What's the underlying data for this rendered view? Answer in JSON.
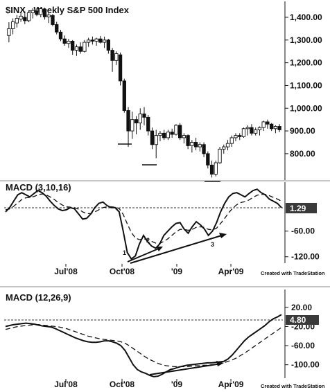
{
  "chart_data": [
    {
      "type": "candlestick",
      "title": "$INX - Weekly  S&P 500 Index",
      "y_ticks": [
        "1,400.00",
        "1,300.00",
        "1,200.00",
        "1,100.00",
        "1,000.00",
        "900.00",
        "800.00"
      ],
      "y_tick_values": [
        1400,
        1300,
        1200,
        1100,
        1000,
        900,
        800
      ],
      "ylim": [
        690,
        1470
      ],
      "candles": [
        {
          "o": 1320,
          "h": 1378,
          "l": 1290,
          "c": 1350
        },
        {
          "o": 1350,
          "h": 1395,
          "l": 1325,
          "c": 1380
        },
        {
          "o": 1375,
          "h": 1410,
          "l": 1355,
          "c": 1395
        },
        {
          "o": 1392,
          "h": 1420,
          "l": 1380,
          "c": 1405
        },
        {
          "o": 1400,
          "h": 1426,
          "l": 1370,
          "c": 1385
        },
        {
          "o": 1385,
          "h": 1430,
          "l": 1378,
          "c": 1420
        },
        {
          "o": 1420,
          "h": 1440,
          "l": 1395,
          "c": 1430
        },
        {
          "o": 1428,
          "h": 1440,
          "l": 1405,
          "c": 1412
        },
        {
          "o": 1412,
          "h": 1445,
          "l": 1400,
          "c": 1438
        },
        {
          "o": 1435,
          "h": 1442,
          "l": 1390,
          "c": 1402
        },
        {
          "o": 1402,
          "h": 1420,
          "l": 1375,
          "c": 1410
        },
        {
          "o": 1408,
          "h": 1415,
          "l": 1360,
          "c": 1368
        },
        {
          "o": 1368,
          "h": 1380,
          "l": 1325,
          "c": 1335
        },
        {
          "o": 1335,
          "h": 1345,
          "l": 1295,
          "c": 1305
        },
        {
          "o": 1305,
          "h": 1320,
          "l": 1275,
          "c": 1285
        },
        {
          "o": 1285,
          "h": 1305,
          "l": 1265,
          "c": 1295
        },
        {
          "o": 1295,
          "h": 1300,
          "l": 1235,
          "c": 1255
        },
        {
          "o": 1255,
          "h": 1280,
          "l": 1230,
          "c": 1270
        },
        {
          "o": 1270,
          "h": 1290,
          "l": 1240,
          "c": 1250
        },
        {
          "o": 1250,
          "h": 1300,
          "l": 1245,
          "c": 1290
        },
        {
          "o": 1290,
          "h": 1310,
          "l": 1270,
          "c": 1300
        },
        {
          "o": 1300,
          "h": 1315,
          "l": 1280,
          "c": 1295
        },
        {
          "o": 1295,
          "h": 1310,
          "l": 1275,
          "c": 1305
        },
        {
          "o": 1305,
          "h": 1318,
          "l": 1285,
          "c": 1290
        },
        {
          "o": 1290,
          "h": 1315,
          "l": 1265,
          "c": 1300
        },
        {
          "o": 1300,
          "h": 1305,
          "l": 1240,
          "c": 1255
        },
        {
          "o": 1255,
          "h": 1265,
          "l": 1160,
          "c": 1210
        },
        {
          "o": 1210,
          "h": 1250,
          "l": 1190,
          "c": 1240
        },
        {
          "o": 1235,
          "h": 1245,
          "l": 1100,
          "c": 1120
        },
        {
          "o": 1120,
          "h": 1130,
          "l": 980,
          "c": 990
        },
        {
          "o": 990,
          "h": 1005,
          "l": 830,
          "c": 900
        },
        {
          "o": 900,
          "h": 985,
          "l": 865,
          "c": 950
        },
        {
          "o": 950,
          "h": 965,
          "l": 885,
          "c": 935
        },
        {
          "o": 935,
          "h": 1000,
          "l": 905,
          "c": 975
        },
        {
          "o": 975,
          "h": 1005,
          "l": 925,
          "c": 960
        },
        {
          "o": 960,
          "h": 970,
          "l": 880,
          "c": 900
        },
        {
          "o": 900,
          "h": 915,
          "l": 820,
          "c": 840
        },
        {
          "o": 840,
          "h": 905,
          "l": 780,
          "c": 880
        },
        {
          "o": 880,
          "h": 900,
          "l": 855,
          "c": 890
        },
        {
          "o": 890,
          "h": 905,
          "l": 860,
          "c": 870
        },
        {
          "o": 870,
          "h": 905,
          "l": 860,
          "c": 895
        },
        {
          "o": 895,
          "h": 910,
          "l": 870,
          "c": 885
        },
        {
          "o": 885,
          "h": 930,
          "l": 880,
          "c": 925
        },
        {
          "o": 925,
          "h": 935,
          "l": 860,
          "c": 870
        },
        {
          "o": 870,
          "h": 890,
          "l": 845,
          "c": 880
        },
        {
          "o": 880,
          "h": 885,
          "l": 820,
          "c": 835
        },
        {
          "o": 835,
          "h": 860,
          "l": 805,
          "c": 850
        },
        {
          "o": 850,
          "h": 870,
          "l": 815,
          "c": 830
        },
        {
          "o": 830,
          "h": 850,
          "l": 810,
          "c": 840
        },
        {
          "o": 840,
          "h": 850,
          "l": 785,
          "c": 800
        },
        {
          "o": 800,
          "h": 810,
          "l": 735,
          "c": 750
        },
        {
          "o": 750,
          "h": 770,
          "l": 695,
          "c": 710
        },
        {
          "o": 710,
          "h": 770,
          "l": 700,
          "c": 760
        },
        {
          "o": 760,
          "h": 830,
          "l": 755,
          "c": 820
        },
        {
          "o": 820,
          "h": 840,
          "l": 800,
          "c": 830
        },
        {
          "o": 830,
          "h": 860,
          "l": 815,
          "c": 845
        },
        {
          "o": 845,
          "h": 880,
          "l": 830,
          "c": 870
        },
        {
          "o": 870,
          "h": 890,
          "l": 855,
          "c": 880
        },
        {
          "o": 880,
          "h": 890,
          "l": 860,
          "c": 875
        },
        {
          "o": 875,
          "h": 915,
          "l": 870,
          "c": 910
        },
        {
          "o": 910,
          "h": 925,
          "l": 880,
          "c": 915
        },
        {
          "o": 915,
          "h": 930,
          "l": 880,
          "c": 890
        },
        {
          "o": 890,
          "h": 915,
          "l": 880,
          "c": 905
        },
        {
          "o": 905,
          "h": 920,
          "l": 880,
          "c": 915
        },
        {
          "o": 915,
          "h": 945,
          "l": 900,
          "c": 940
        },
        {
          "o": 940,
          "h": 950,
          "l": 910,
          "c": 930
        },
        {
          "o": 930,
          "h": 935,
          "l": 900,
          "c": 910
        },
        {
          "o": 910,
          "h": 925,
          "l": 890,
          "c": 920
        },
        {
          "o": 920,
          "h": 930,
          "l": 895,
          "c": 905
        }
      ]
    },
    {
      "type": "line",
      "title": "MACD (3,10,16)",
      "y_ticks": [
        "-60.00",
        "-120.00"
      ],
      "y_tick_values": [
        -60,
        -120
      ],
      "ylim": [
        -135,
        40
      ],
      "value_box": "1.29",
      "zero_line": 0,
      "series": [
        {
          "values": [
            -15,
            -5,
            10,
            25,
            30,
            25,
            20,
            28,
            35,
            30,
            22,
            10,
            0,
            -8,
            -12,
            -10,
            -5,
            -8,
            -20,
            -32,
            -30,
            -20,
            -5,
            5,
            8,
            0,
            -5,
            -5,
            -15,
            -60,
            -110,
            -125,
            -118,
            -90,
            -70,
            -85,
            -95,
            -100,
            -90,
            -70,
            -60,
            -50,
            -42,
            -40,
            -55,
            -65,
            -50,
            -38,
            -45,
            -55,
            -70,
            -60,
            -40,
            -15,
            5,
            20,
            28,
            30,
            25,
            20,
            28,
            35,
            38,
            30,
            25,
            15,
            10,
            5,
            -5
          ]
        },
        {
          "values": [
            -10,
            -8,
            -2,
            6,
            14,
            18,
            19,
            21,
            25,
            27,
            25,
            20,
            14,
            7,
            1,
            -3,
            -4,
            -5,
            -9,
            -15,
            -19,
            -19,
            -15,
            -10,
            -5,
            -3,
            -3,
            -4,
            -7,
            -21,
            -43,
            -63,
            -76,
            -80,
            -78,
            -80,
            -84,
            -88,
            -89,
            -84,
            -78,
            -70,
            -62,
            -56,
            -56,
            -58,
            -56,
            -51,
            -50,
            -51,
            -56,
            -57,
            -53,
            -42,
            -30,
            -17,
            -6,
            2,
            7,
            9,
            13,
            19,
            24,
            26,
            26,
            23,
            19,
            15,
            10
          ]
        }
      ],
      "annotations": [
        "1",
        "2",
        "3"
      ],
      "xticks": [
        "Jul'08",
        "Oct'08",
        "'09",
        "Apr'09"
      ],
      "credit": "Created with TradeStation"
    },
    {
      "type": "line",
      "title": "MACD (12,26,9)",
      "y_ticks": [
        "20.00",
        "-20.00",
        "-60.00",
        "-100.00"
      ],
      "y_tick_values": [
        20,
        -20,
        -60,
        -100
      ],
      "ylim": [
        -128,
        40
      ],
      "value_box": "4.80",
      "zero_line": 0,
      "series": [
        {
          "values": [
            -20,
            -18,
            -16,
            -15,
            -14,
            -13,
            -14,
            -15,
            -17,
            -19,
            -20,
            -21,
            -24,
            -28,
            -32,
            -36,
            -40,
            -44,
            -47,
            -50,
            -52,
            -53,
            -53,
            -52,
            -50,
            -50,
            -52,
            -55,
            -60,
            -70,
            -85,
            -100,
            -110,
            -115,
            -118,
            -122,
            -125,
            -124,
            -120,
            -115,
            -110,
            -108,
            -105,
            -103,
            -101,
            -100,
            -99,
            -98,
            -97,
            -96,
            -96,
            -95,
            -94,
            -93,
            -88,
            -80,
            -70,
            -60,
            -50,
            -42,
            -36,
            -30,
            -24,
            -18,
            -10,
            -4,
            0,
            5
          ]
        },
        {
          "values": [
            -26,
            -24,
            -22,
            -20,
            -19,
            -18,
            -17,
            -16,
            -16,
            -17,
            -18,
            -19,
            -20,
            -21,
            -23,
            -25,
            -28,
            -31,
            -34,
            -37,
            -40,
            -42,
            -44,
            -46,
            -47,
            -48,
            -49,
            -50,
            -52,
            -55,
            -60,
            -66,
            -72,
            -78,
            -84,
            -89,
            -93,
            -97,
            -100,
            -102,
            -103,
            -104,
            -104,
            -104,
            -104,
            -103,
            -102,
            -102,
            -101,
            -101,
            -100,
            -99,
            -98,
            -96,
            -93,
            -90,
            -86,
            -81,
            -76,
            -70,
            -64,
            -58,
            -52,
            -46,
            -40,
            -34,
            -28,
            -22
          ]
        }
      ],
      "xticks": [
        "Jul'08",
        "Oct'08",
        "'09",
        "Apr'09"
      ],
      "credit": "Created with TradeStation"
    }
  ]
}
